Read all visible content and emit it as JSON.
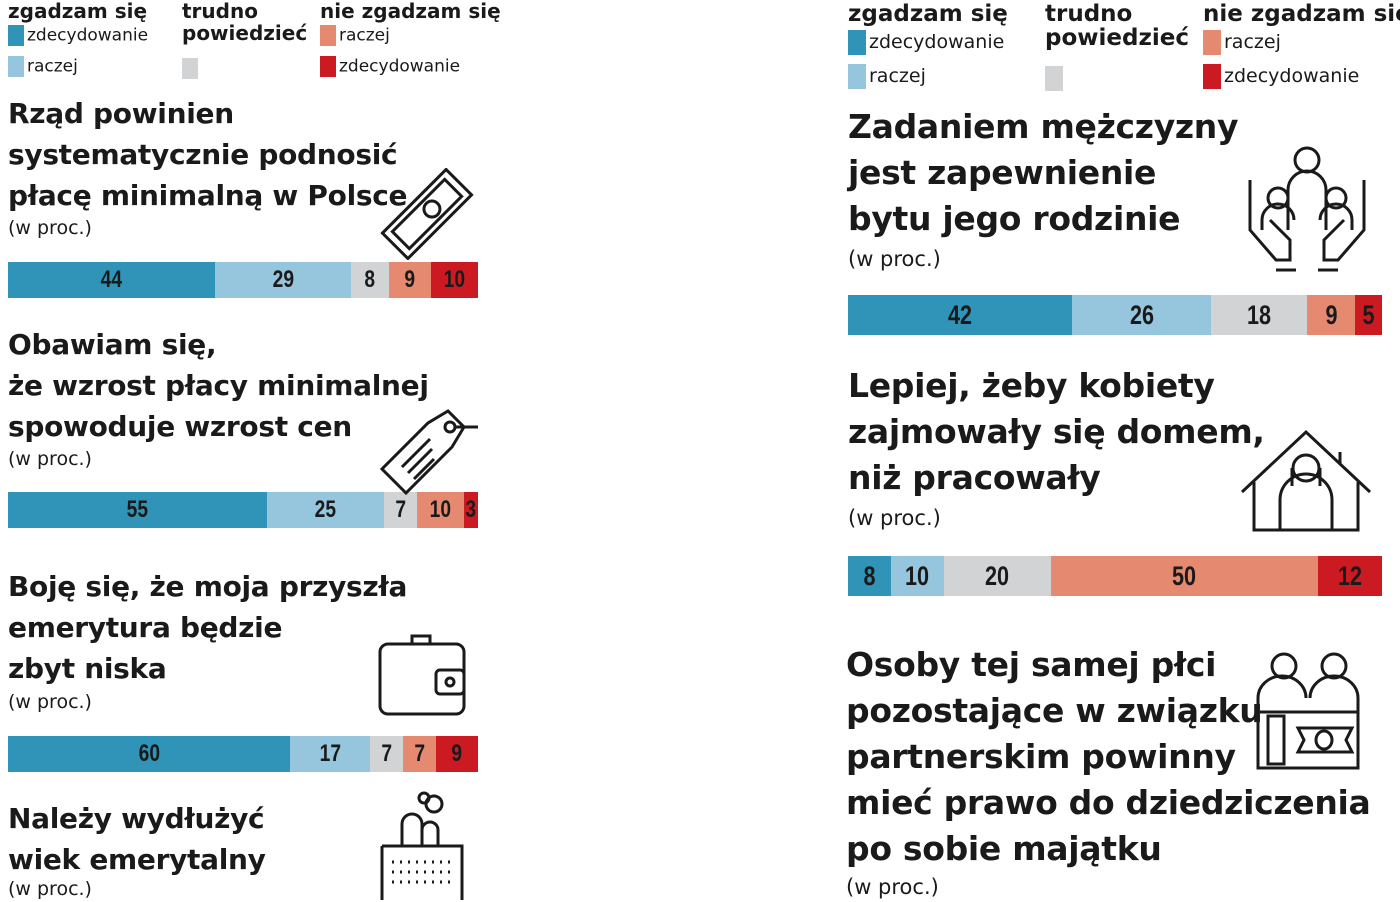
{
  "colors": {
    "agree_strong": "#2f94b8",
    "agree_rather": "#96c5de",
    "hard_to_say": "#d2d3d5",
    "disagree_rather": "#e58a70",
    "disagree_strong": "#cc1a22"
  },
  "legend": {
    "agree": "zgadzam się",
    "hard_line1": "trudno",
    "hard_line2": "powiedzieć",
    "disagree": "nie zgadzam się",
    "strongly": "zdecydowanie",
    "rather": "raczej"
  },
  "unit": "(w proc.)",
  "chart_data": [
    {
      "type": "bar",
      "stacked": true,
      "title": [
        "Rząd powinien",
        "systematycznie podnosić",
        "płacę minimalną w Polsce"
      ],
      "icon": "banknote-icon",
      "values": [
        44,
        29,
        8,
        9,
        10
      ]
    },
    {
      "type": "bar",
      "stacked": true,
      "title": [
        "Obawiam się,",
        "że wzrost płacy minimalnej",
        "spowoduje wzrost cen"
      ],
      "icon": "price-tag-icon",
      "values": [
        55,
        25,
        7,
        10,
        3
      ]
    },
    {
      "type": "bar",
      "stacked": true,
      "title": [
        "Boję się, że moja przyszła",
        "emerytura będzie",
        "zbyt niska"
      ],
      "icon": "wallet-icon",
      "values": [
        60,
        17,
        7,
        7,
        9
      ]
    },
    {
      "type": "bar",
      "stacked": true,
      "title": [
        "Należy wydłużyć",
        "wiek emerytalny"
      ],
      "icon": "calendar-icon",
      "values": []
    },
    {
      "type": "bar",
      "stacked": true,
      "title": [
        "Zadaniem mężczyzny",
        "jest zapewnienie",
        "bytu jego rodzinie"
      ],
      "icon": "family-hands-icon",
      "values": [
        42,
        26,
        18,
        9,
        5
      ]
    },
    {
      "type": "bar",
      "stacked": true,
      "title": [
        "Lepiej, żeby kobiety",
        "zajmowały się domem,",
        "niż pracowały"
      ],
      "icon": "woman-house-icon",
      "values": [
        8,
        10,
        20,
        50,
        12
      ]
    },
    {
      "type": "bar",
      "stacked": true,
      "title": [
        "Osoby tej samej płci",
        "pozostające w związku",
        "partnerskim powinny",
        "mieć prawo do dziedziczenia",
        "po sobie majątku"
      ],
      "icon": "couple-inheritance-icon",
      "values": []
    }
  ]
}
